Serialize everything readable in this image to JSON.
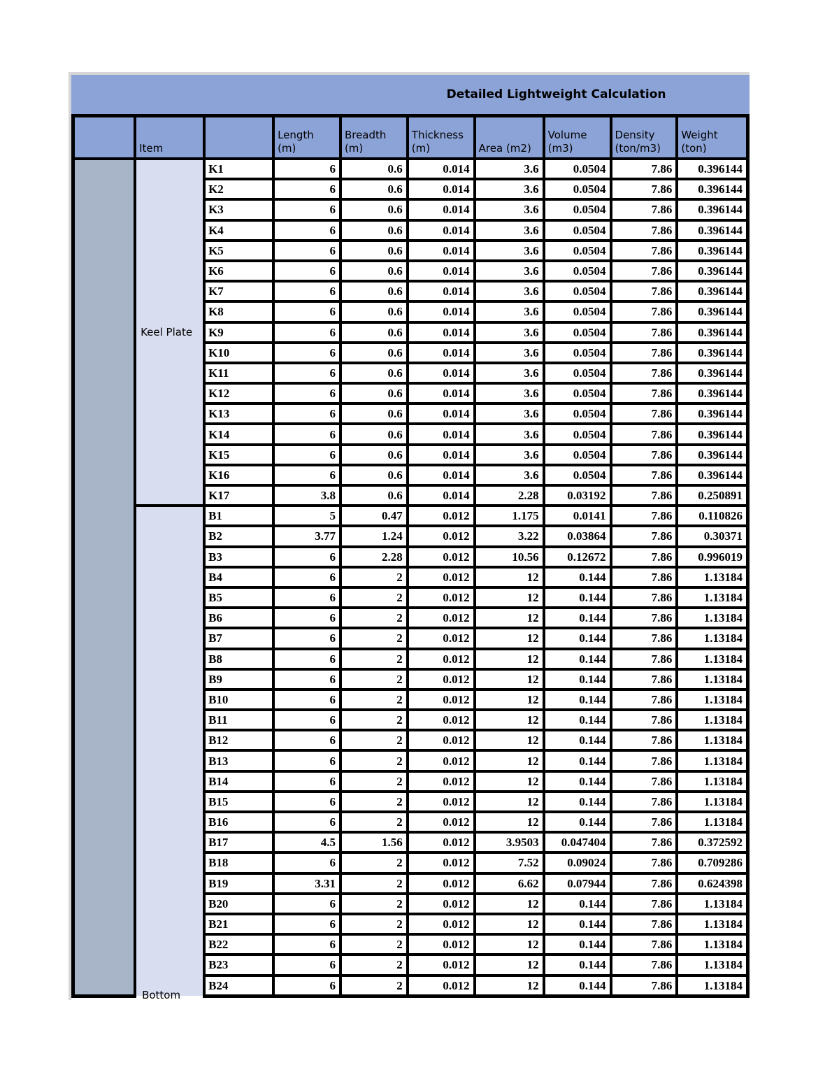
{
  "title": "Detailed Lightweight Calculation",
  "colors": {
    "header_blue": "#8CA3D8",
    "group_column_fill": "#A8B5C9",
    "section_column_fill": "#D9DDF0",
    "page_margin_gray": "#D6D6D6",
    "grid_black": "#000000"
  },
  "table": {
    "column_headers": [
      "",
      "Item",
      "",
      "Length\n(m)",
      "Breadth\n(m)",
      "Thickness\n(m)",
      "Area (m2)",
      "Volume\n(m3)",
      "Density\n(ton/m3)",
      "Weight\n(ton)"
    ],
    "sections": [
      {
        "name": "Keel Plate",
        "rows": [
          [
            "K1",
            "6",
            "0.6",
            "0.014",
            "3.6",
            "0.0504",
            "7.86",
            "0.396144"
          ],
          [
            "K2",
            "6",
            "0.6",
            "0.014",
            "3.6",
            "0.0504",
            "7.86",
            "0.396144"
          ],
          [
            "K3",
            "6",
            "0.6",
            "0.014",
            "3.6",
            "0.0504",
            "7.86",
            "0.396144"
          ],
          [
            "K4",
            "6",
            "0.6",
            "0.014",
            "3.6",
            "0.0504",
            "7.86",
            "0.396144"
          ],
          [
            "K5",
            "6",
            "0.6",
            "0.014",
            "3.6",
            "0.0504",
            "7.86",
            "0.396144"
          ],
          [
            "K6",
            "6",
            "0.6",
            "0.014",
            "3.6",
            "0.0504",
            "7.86",
            "0.396144"
          ],
          [
            "K7",
            "6",
            "0.6",
            "0.014",
            "3.6",
            "0.0504",
            "7.86",
            "0.396144"
          ],
          [
            "K8",
            "6",
            "0.6",
            "0.014",
            "3.6",
            "0.0504",
            "7.86",
            "0.396144"
          ],
          [
            "K9",
            "6",
            "0.6",
            "0.014",
            "3.6",
            "0.0504",
            "7.86",
            "0.396144"
          ],
          [
            "K10",
            "6",
            "0.6",
            "0.014",
            "3.6",
            "0.0504",
            "7.86",
            "0.396144"
          ],
          [
            "K11",
            "6",
            "0.6",
            "0.014",
            "3.6",
            "0.0504",
            "7.86",
            "0.396144"
          ],
          [
            "K12",
            "6",
            "0.6",
            "0.014",
            "3.6",
            "0.0504",
            "7.86",
            "0.396144"
          ],
          [
            "K13",
            "6",
            "0.6",
            "0.014",
            "3.6",
            "0.0504",
            "7.86",
            "0.396144"
          ],
          [
            "K14",
            "6",
            "0.6",
            "0.014",
            "3.6",
            "0.0504",
            "7.86",
            "0.396144"
          ],
          [
            "K15",
            "6",
            "0.6",
            "0.014",
            "3.6",
            "0.0504",
            "7.86",
            "0.396144"
          ],
          [
            "K16",
            "6",
            "0.6",
            "0.014",
            "3.6",
            "0.0504",
            "7.86",
            "0.396144"
          ],
          [
            "K17",
            "3.8",
            "0.6",
            "0.014",
            "2.28",
            "0.03192",
            "7.86",
            "0.250891"
          ]
        ]
      },
      {
        "name": "Bottom",
        "rows": [
          [
            "B1",
            "5",
            "0.47",
            "0.012",
            "1.175",
            "0.0141",
            "7.86",
            "0.110826"
          ],
          [
            "B2",
            "3.77",
            "1.24",
            "0.012",
            "3.22",
            "0.03864",
            "7.86",
            "0.30371"
          ],
          [
            "B3",
            "6",
            "2.28",
            "0.012",
            "10.56",
            "0.12672",
            "7.86",
            "0.996019"
          ],
          [
            "B4",
            "6",
            "2",
            "0.012",
            "12",
            "0.144",
            "7.86",
            "1.13184"
          ],
          [
            "B5",
            "6",
            "2",
            "0.012",
            "12",
            "0.144",
            "7.86",
            "1.13184"
          ],
          [
            "B6",
            "6",
            "2",
            "0.012",
            "12",
            "0.144",
            "7.86",
            "1.13184"
          ],
          [
            "B7",
            "6",
            "2",
            "0.012",
            "12",
            "0.144",
            "7.86",
            "1.13184"
          ],
          [
            "B8",
            "6",
            "2",
            "0.012",
            "12",
            "0.144",
            "7.86",
            "1.13184"
          ],
          [
            "B9",
            "6",
            "2",
            "0.012",
            "12",
            "0.144",
            "7.86",
            "1.13184"
          ],
          [
            "B10",
            "6",
            "2",
            "0.012",
            "12",
            "0.144",
            "7.86",
            "1.13184"
          ],
          [
            "B11",
            "6",
            "2",
            "0.012",
            "12",
            "0.144",
            "7.86",
            "1.13184"
          ],
          [
            "B12",
            "6",
            "2",
            "0.012",
            "12",
            "0.144",
            "7.86",
            "1.13184"
          ],
          [
            "B13",
            "6",
            "2",
            "0.012",
            "12",
            "0.144",
            "7.86",
            "1.13184"
          ],
          [
            "B14",
            "6",
            "2",
            "0.012",
            "12",
            "0.144",
            "7.86",
            "1.13184"
          ],
          [
            "B15",
            "6",
            "2",
            "0.012",
            "12",
            "0.144",
            "7.86",
            "1.13184"
          ],
          [
            "B16",
            "6",
            "2",
            "0.012",
            "12",
            "0.144",
            "7.86",
            "1.13184"
          ],
          [
            "B17",
            "4.5",
            "1.56",
            "0.012",
            "3.9503",
            "0.047404",
            "7.86",
            "0.372592"
          ],
          [
            "B18",
            "6",
            "2",
            "0.012",
            "7.52",
            "0.09024",
            "7.86",
            "0.709286"
          ],
          [
            "B19",
            "3.31",
            "2",
            "0.012",
            "6.62",
            "0.07944",
            "7.86",
            "0.624398"
          ],
          [
            "B20",
            "6",
            "2",
            "0.012",
            "12",
            "0.144",
            "7.86",
            "1.13184"
          ],
          [
            "B21",
            "6",
            "2",
            "0.012",
            "12",
            "0.144",
            "7.86",
            "1.13184"
          ],
          [
            "B22",
            "6",
            "2",
            "0.012",
            "12",
            "0.144",
            "7.86",
            "1.13184"
          ],
          [
            "B23",
            "6",
            "2",
            "0.012",
            "12",
            "0.144",
            "7.86",
            "1.13184"
          ],
          [
            "B24",
            "6",
            "2",
            "0.012",
            "12",
            "0.144",
            "7.86",
            "1.13184"
          ]
        ]
      }
    ]
  }
}
